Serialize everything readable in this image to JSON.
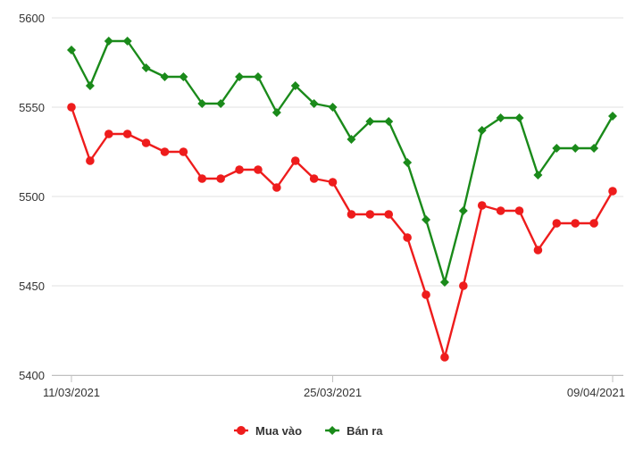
{
  "chart_data": {
    "type": "line",
    "x": [
      "11/03/2021",
      "12/03/2021",
      "13/03/2021",
      "14/03/2021",
      "15/03/2021",
      "16/03/2021",
      "17/03/2021",
      "18/03/2021",
      "19/03/2021",
      "20/03/2021",
      "21/03/2021",
      "22/03/2021",
      "23/03/2021",
      "24/03/2021",
      "25/03/2021",
      "26/03/2021",
      "27/03/2021",
      "28/03/2021",
      "29/03/2021",
      "30/03/2021",
      "31/03/2021",
      "01/04/2021",
      "02/04/2021",
      "03/04/2021",
      "04/04/2021",
      "05/04/2021",
      "06/04/2021",
      "07/04/2021",
      "08/04/2021",
      "09/04/2021"
    ],
    "x_tick_labels": [
      "11/03/2021",
      "25/03/2021",
      "09/04/2021"
    ],
    "x_tick_indices": [
      0,
      14,
      29
    ],
    "y_ticks": [
      5400,
      5450,
      5500,
      5550,
      5600
    ],
    "ylim": [
      5400,
      5600
    ],
    "grid": "horizontal",
    "legend_position": "bottom",
    "series": [
      {
        "name": "Mua vào",
        "color": "#ee1c1c",
        "marker": "circle",
        "values": [
          5550,
          5520,
          5535,
          5535,
          5530,
          5525,
          5525,
          5510,
          5510,
          5515,
          5515,
          5505,
          5520,
          5510,
          5508,
          5490,
          5490,
          5490,
          5477,
          5445,
          5410,
          5450,
          5495,
          5492,
          5492,
          5470,
          5485,
          5485,
          5485,
          5503
        ]
      },
      {
        "name": "Bán ra",
        "color": "#1a8a1a",
        "marker": "diamond",
        "values": [
          5582,
          5562,
          5587,
          5587,
          5572,
          5567,
          5567,
          5552,
          5552,
          5567,
          5567,
          5547,
          5562,
          5552,
          5550,
          5532,
          5542,
          5542,
          5519,
          5487,
          5452,
          5492,
          5537,
          5544,
          5544,
          5512,
          5527,
          5527,
          5527,
          5545
        ]
      }
    ]
  }
}
